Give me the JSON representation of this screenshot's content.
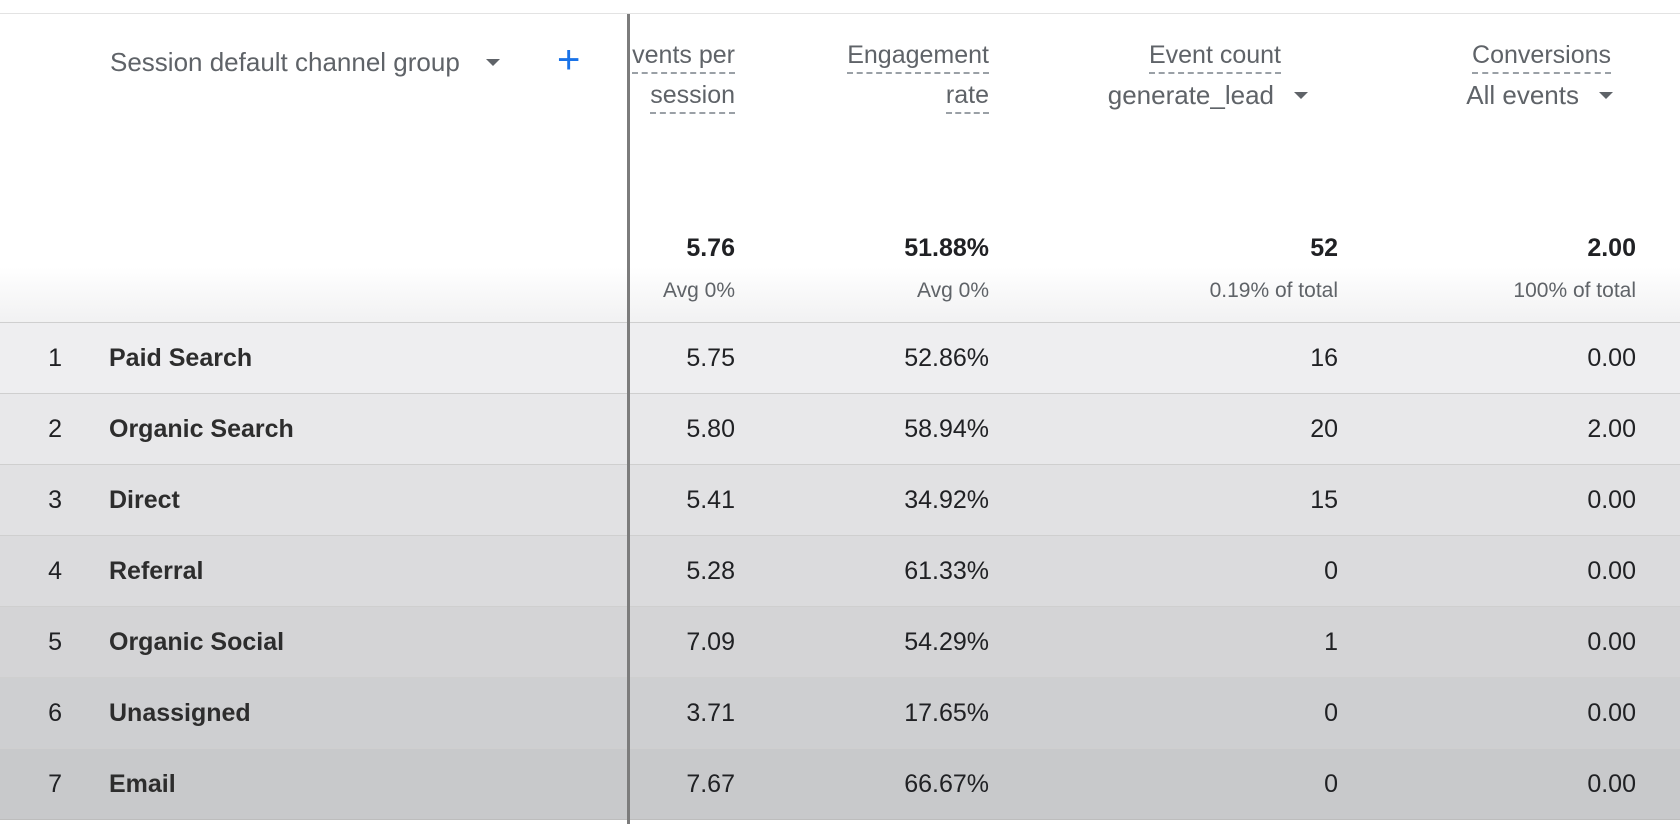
{
  "dimension": {
    "label": "Session default channel group"
  },
  "columns": [
    {
      "label_lines": [
        "vents per",
        "session"
      ],
      "total": "5.76",
      "sub": "Avg 0%"
    },
    {
      "label_lines": [
        "Engagement",
        "rate"
      ],
      "total": "51.88%",
      "sub": "Avg 0%"
    },
    {
      "label_lines": [
        "Event count"
      ],
      "selector": "generate_lead",
      "total": "52",
      "sub": "0.19% of total"
    },
    {
      "label_lines": [
        "Conversions"
      ],
      "selector": "All events",
      "total": "2.00",
      "sub": "100% of total"
    }
  ],
  "rows": [
    {
      "index": "1",
      "channel": "Paid Search",
      "values": [
        "5.75",
        "52.86%",
        "16",
        "0.00"
      ]
    },
    {
      "index": "2",
      "channel": "Organic Search",
      "values": [
        "5.80",
        "58.94%",
        "20",
        "2.00"
      ]
    },
    {
      "index": "3",
      "channel": "Direct",
      "values": [
        "5.41",
        "34.92%",
        "15",
        "0.00"
      ]
    },
    {
      "index": "4",
      "channel": "Referral",
      "values": [
        "5.28",
        "61.33%",
        "0",
        "0.00"
      ]
    },
    {
      "index": "5",
      "channel": "Organic Social",
      "values": [
        "7.09",
        "54.29%",
        "1",
        "0.00"
      ]
    },
    {
      "index": "6",
      "channel": "Unassigned",
      "values": [
        "3.71",
        "17.65%",
        "0",
        "0.00"
      ]
    },
    {
      "index": "7",
      "channel": "Email",
      "values": [
        "7.67",
        "66.67%",
        "0",
        "0.00"
      ]
    }
  ],
  "colors": {
    "accent": "#1a73e8",
    "text": "#202124",
    "muted": "#5f6368"
  },
  "icons": {
    "add": "plus-icon",
    "dropdown": "caret-down-icon"
  }
}
